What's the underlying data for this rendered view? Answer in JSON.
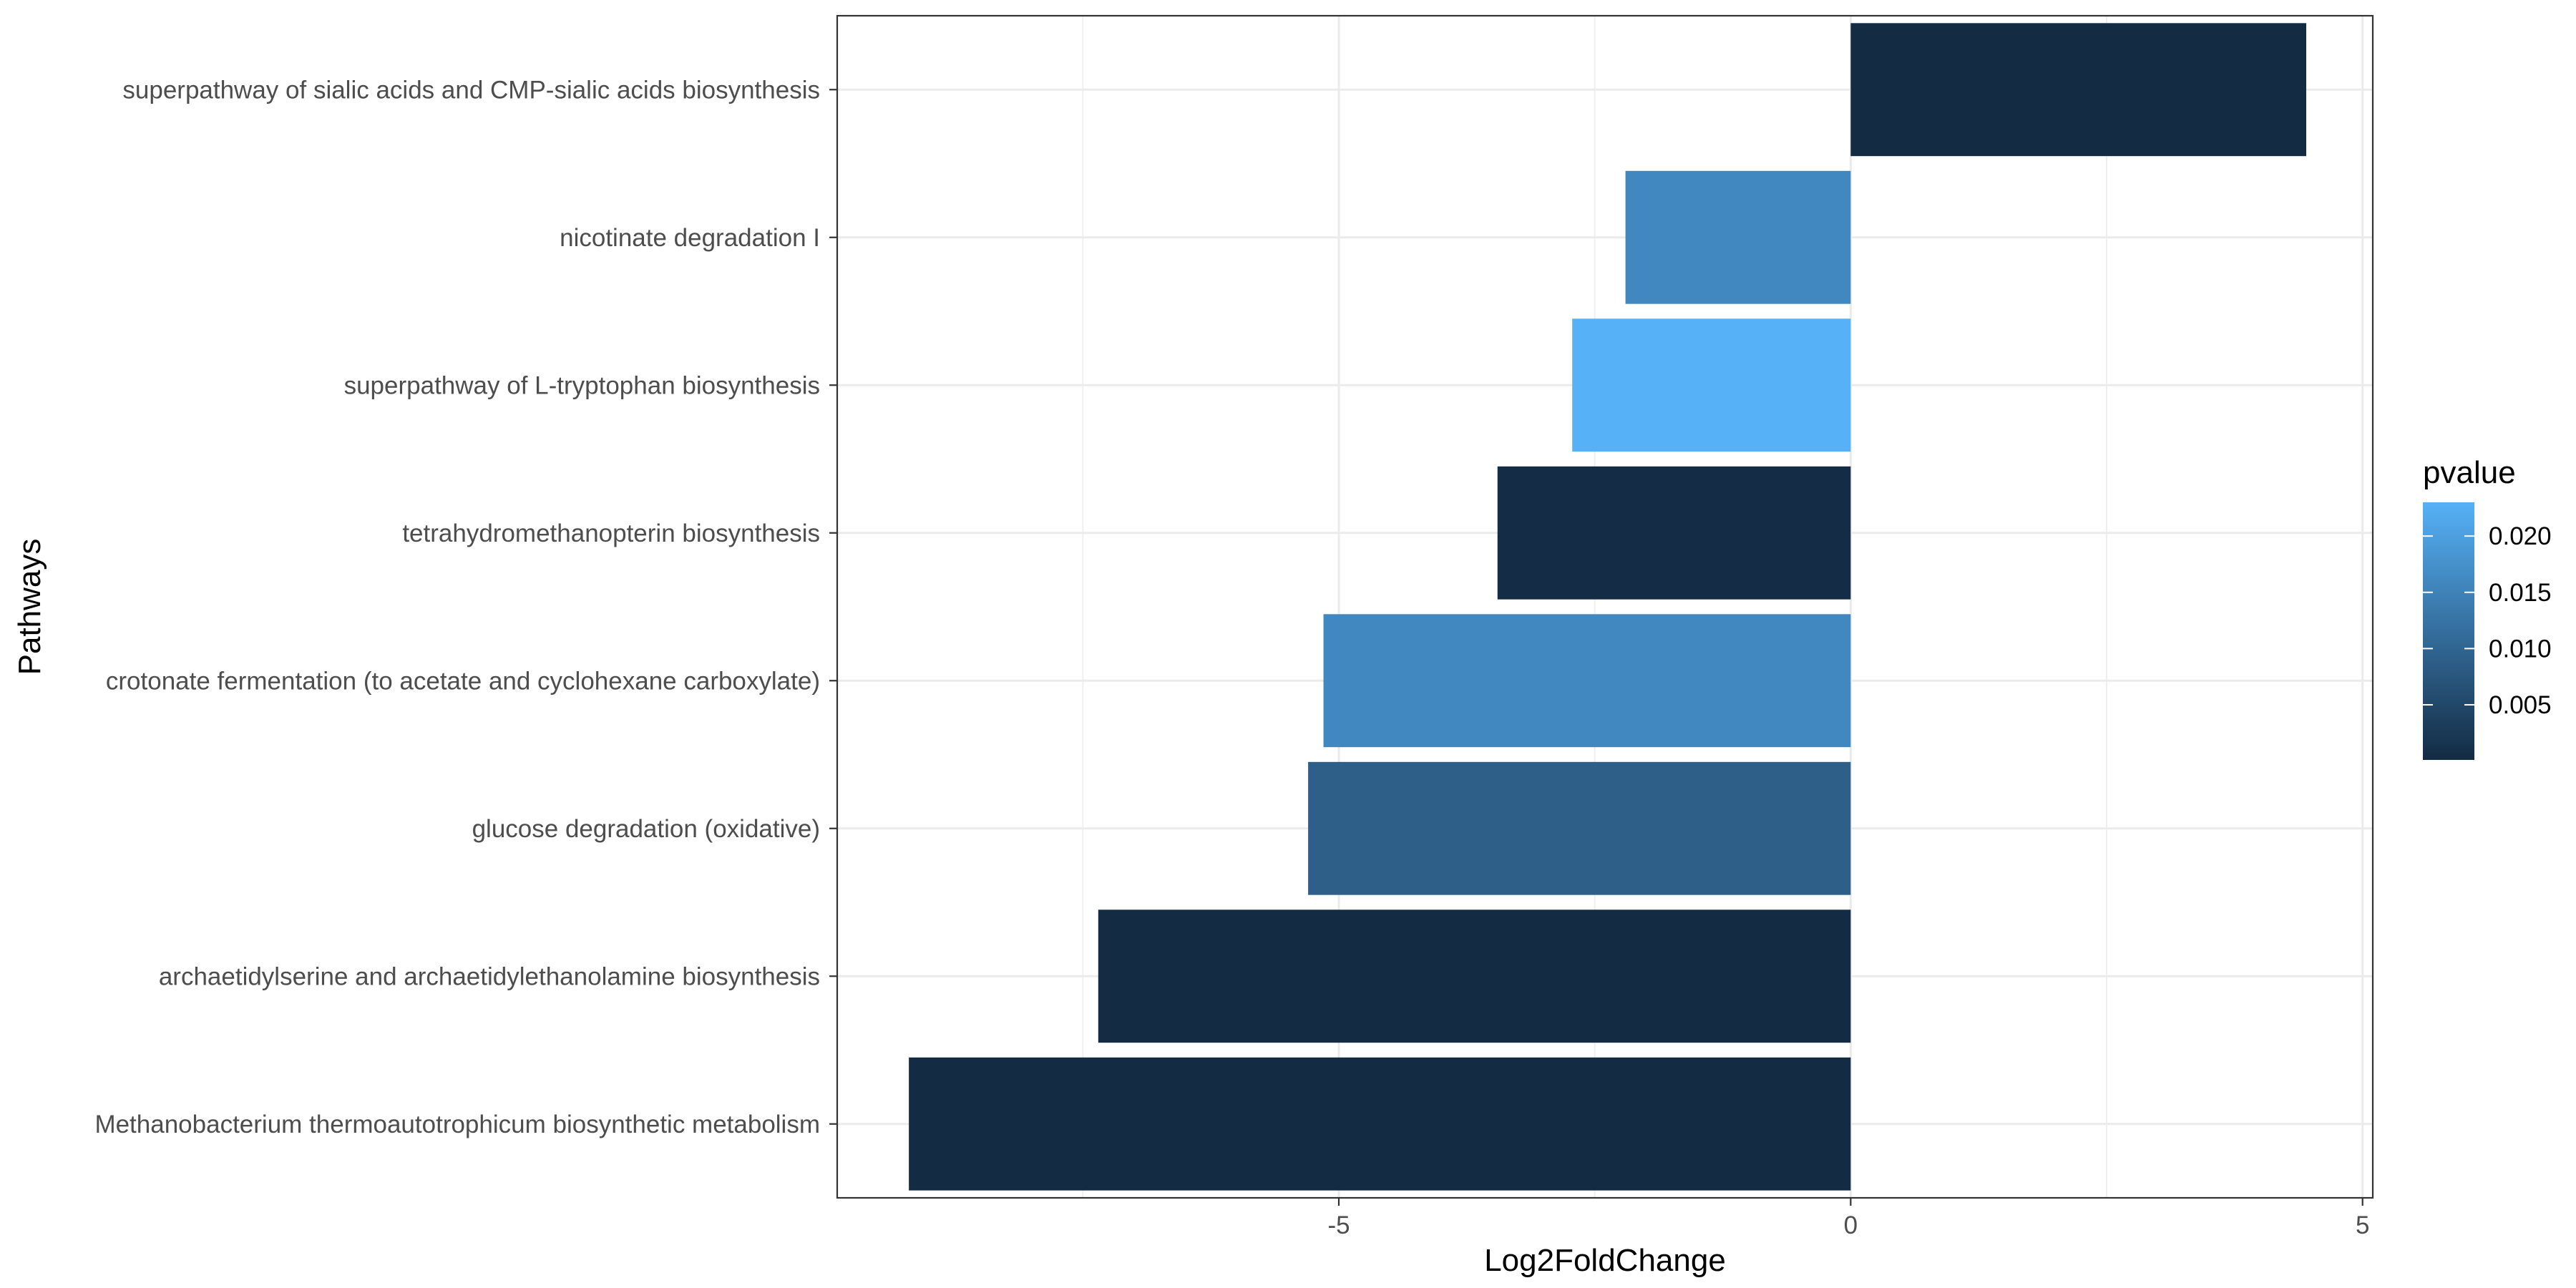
{
  "chart_data": {
    "type": "bar",
    "orientation": "horizontal",
    "xlabel": "Log2FoldChange",
    "ylabel": "Pathways",
    "xlim": [
      -9.9,
      5.1
    ],
    "x_ticks": [
      -5,
      0,
      5
    ],
    "x_tick_labels": [
      "-5",
      "0",
      "5"
    ],
    "grid": true,
    "legend_position": "right",
    "categories": [
      "superpathway of sialic acids and CMP-sialic acids biosynthesis",
      "nicotinate degradation I",
      "superpathway of L-tryptophan biosynthesis",
      "tetrahydromethanopterin biosynthesis",
      "crotonate fermentation (to acetate and cyclohexane carboxylate)",
      "glucose degradation (oxidative)",
      "archaetidylserine and archaetidylethanolamine biosynthesis",
      "Methanobacterium thermoautotrophicum biosynthetic metabolism"
    ],
    "values": [
      4.45,
      -2.2,
      -2.72,
      -3.45,
      -5.15,
      -5.3,
      -7.35,
      -9.2
    ],
    "pvalues": [
      0.0002,
      0.016,
      0.023,
      0.0003,
      0.016,
      0.009,
      0.0002,
      0.0001
    ],
    "color_scale": {
      "title": "pvalue",
      "low_color": "#132b43",
      "high_color": "#56b1f7",
      "min": 0.0001,
      "max": 0.023,
      "ticks": [
        0.005,
        0.01,
        0.015,
        0.02
      ],
      "tick_labels": [
        "0.005",
        "0.010",
        "0.015",
        "0.020"
      ]
    }
  }
}
